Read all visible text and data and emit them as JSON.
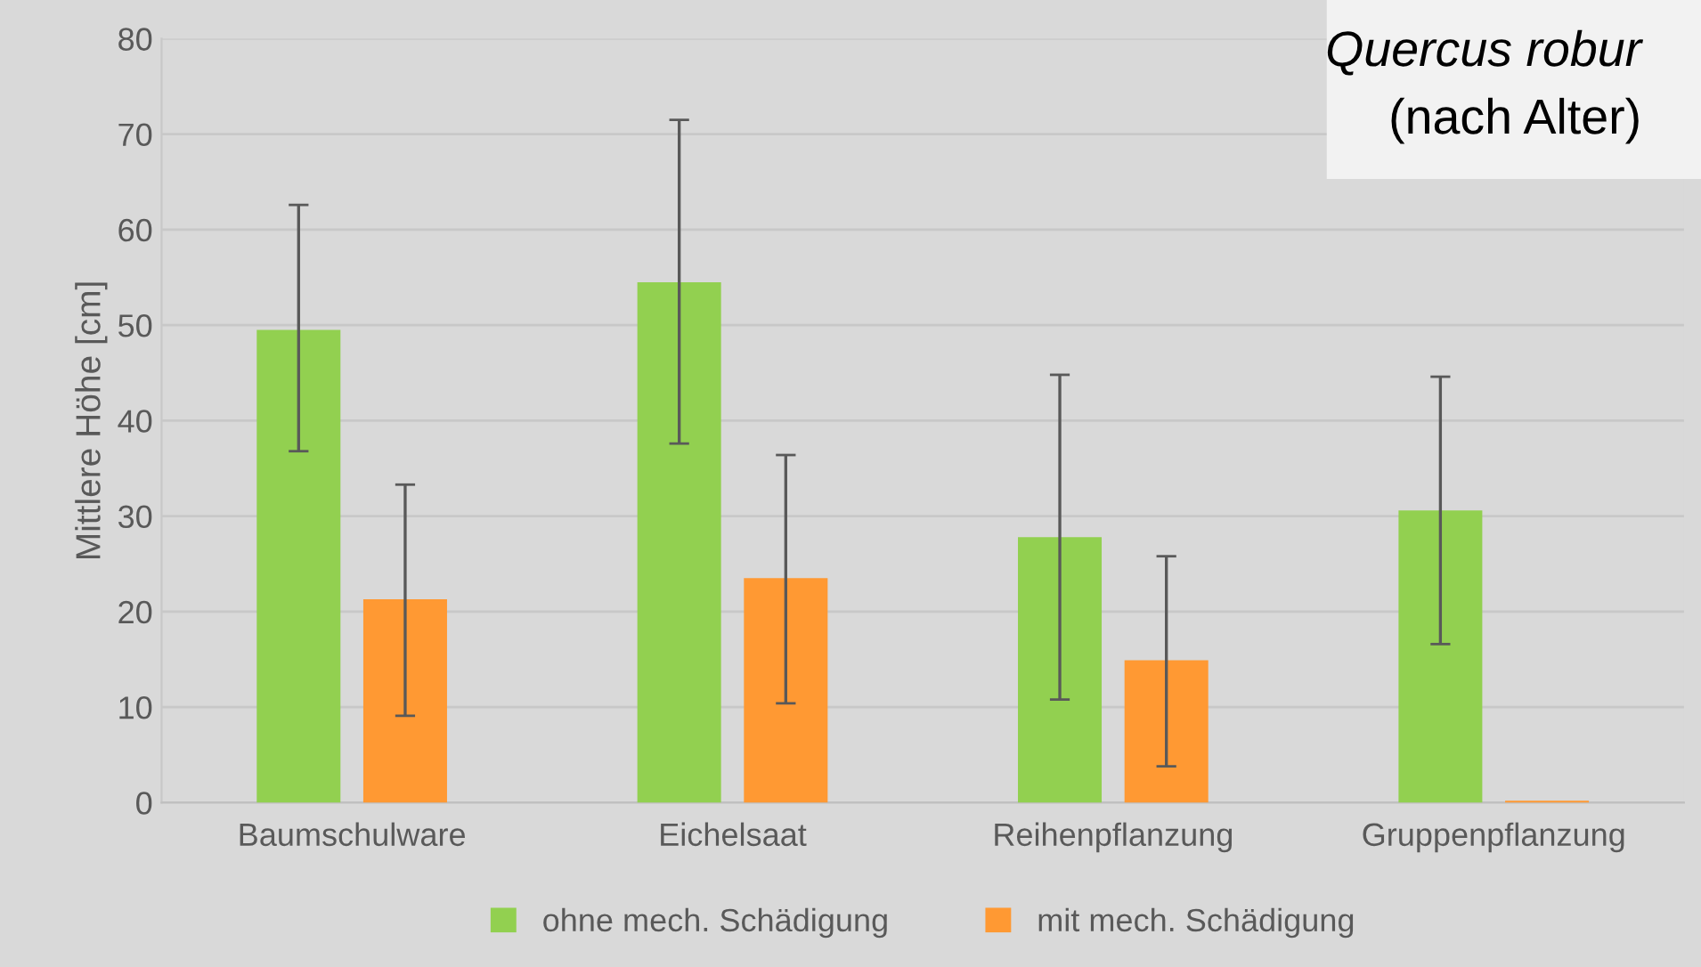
{
  "chart_data": {
    "type": "bar",
    "ylabel": "Mittlere Höhe [cm]",
    "categories": [
      "Baumschulware",
      "Eichelsaat",
      "Reihenpflanzung",
      "Gruppenpflanzung"
    ],
    "series": [
      {
        "name": "ohne mech. Schädigung",
        "color": "#92d050",
        "values": [
          49.5,
          54.5,
          27.8,
          30.6
        ],
        "errors": [
          [
            36.8,
            62.6
          ],
          [
            37.6,
            71.5
          ],
          [
            10.8,
            44.8
          ],
          [
            16.6,
            44.6
          ]
        ]
      },
      {
        "name": "mit mech. Schädigung",
        "color": "#ff9933",
        "values": [
          21.3,
          23.5,
          14.9,
          0.2
        ],
        "errors": [
          [
            9.1,
            33.3
          ],
          [
            10.4,
            36.4
          ],
          [
            3.8,
            25.8
          ],
          null
        ]
      }
    ],
    "ylim": [
      0,
      80
    ],
    "yticks": [
      0,
      10,
      20,
      30,
      40,
      50,
      60,
      70,
      80
    ],
    "grid": "y",
    "legend": "bottom",
    "annotations": [
      "Quercus robur",
      "(nach Alter)"
    ]
  }
}
